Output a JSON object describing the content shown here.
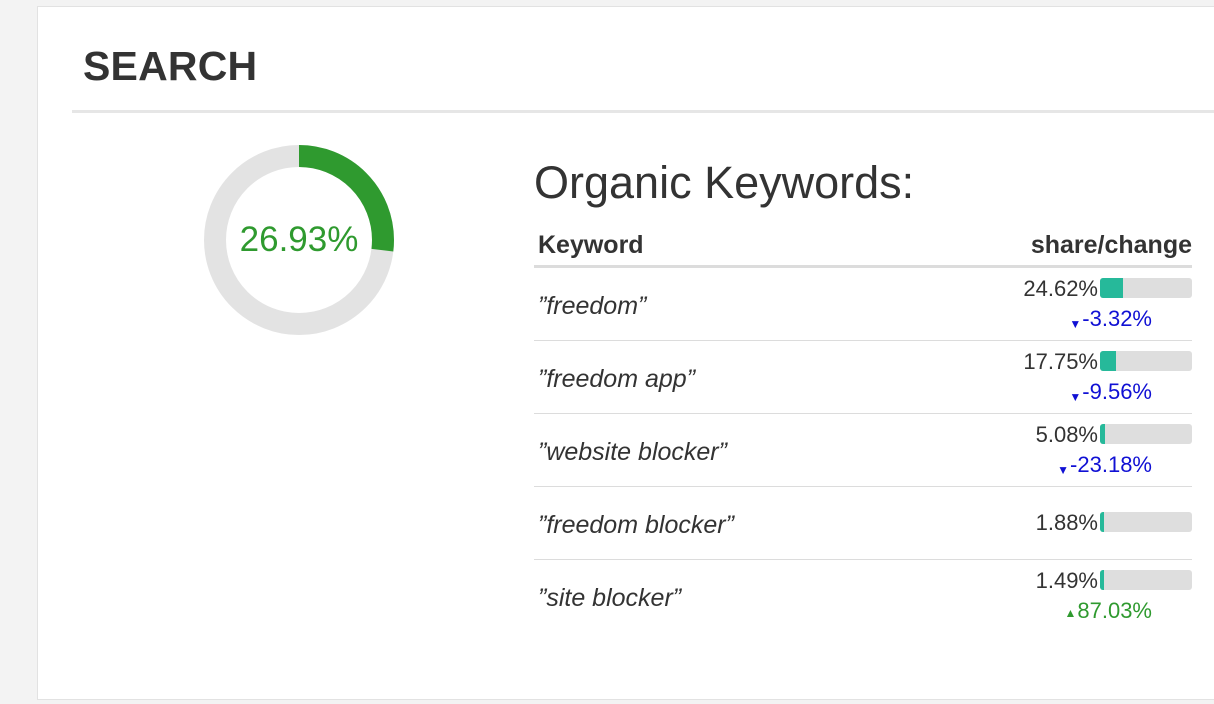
{
  "section": {
    "title": "SEARCH"
  },
  "donut": {
    "value": 26.93,
    "label": "26.93%",
    "color": "#2f9a2f",
    "track_color": "#e3e3e3"
  },
  "keywords": {
    "heading": "Organic Keywords:",
    "columns": {
      "keyword": "Keyword",
      "share_change": "share/change"
    },
    "bar_color": "#26b99a",
    "rows": [
      {
        "keyword": "”freedom”",
        "share": "24.62%",
        "share_value": 24.62,
        "change": "-3.32%",
        "direction": "down"
      },
      {
        "keyword": "”freedom app”",
        "share": "17.75%",
        "share_value": 17.75,
        "change": "-9.56%",
        "direction": "down"
      },
      {
        "keyword": "”website blocker”",
        "share": "5.08%",
        "share_value": 5.08,
        "change": "-23.18%",
        "direction": "down"
      },
      {
        "keyword": "”freedom blocker”",
        "share": "1.88%",
        "share_value": 1.88,
        "change": "",
        "direction": "none"
      },
      {
        "keyword": "”site blocker”",
        "share": "1.49%",
        "share_value": 1.49,
        "change": "87.03%",
        "direction": "up"
      }
    ]
  }
}
